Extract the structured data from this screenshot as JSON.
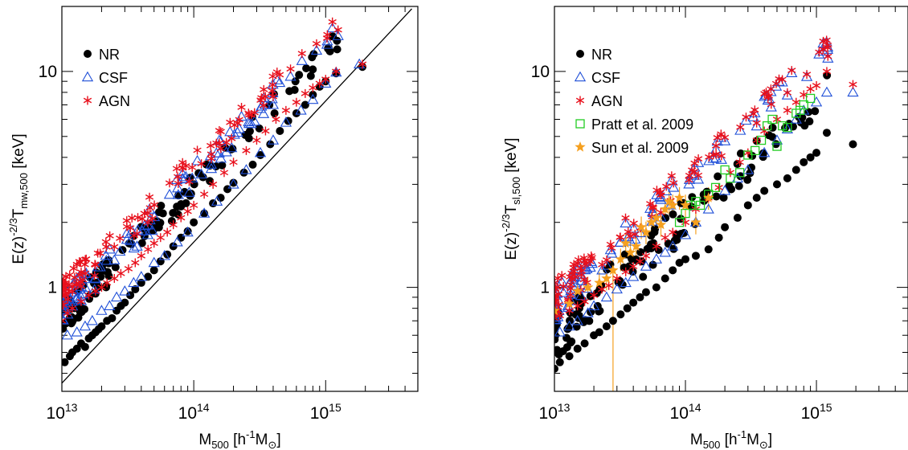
{
  "colors": {
    "nr": "#000000",
    "csf": "#1f4fd8",
    "agn": "#e8101c",
    "pratt": "#22cc22",
    "sun": "#f5a020",
    "fit_line": "#000000"
  },
  "chart_data": [
    {
      "type": "scatter",
      "x_scale": "log",
      "y_scale": "log",
      "xlim": [
        10000000000000.0,
        5000000000000000.0
      ],
      "ylim": [
        0.33,
        20
      ],
      "x_ticks": [
        {
          "value": 10000000000000.0,
          "base": "10",
          "exp": "13"
        },
        {
          "value": 100000000000000.0,
          "base": "10",
          "exp": "14"
        },
        {
          "value": 1000000000000000.0,
          "base": "10",
          "exp": "15"
        }
      ],
      "y_ticks": [
        {
          "value": 1,
          "label": "1"
        },
        {
          "value": 10,
          "label": "10"
        }
      ],
      "xlabel": {
        "main": "M",
        "sub": "500",
        "unit_open": " [h",
        "unit_sup": "-1",
        "unit_close": "M",
        "unit_sub": "⊙",
        "unit_end": "]"
      },
      "ylabel": {
        "main": "E(z)",
        "sup": "-2/3",
        "T": "T",
        "sub": "mw,500",
        "unit": " [keV]"
      },
      "legend": {
        "position": "top-left",
        "entries": [
          {
            "key": "nr",
            "label": "NR",
            "marker": "filled-circle"
          },
          {
            "key": "csf",
            "label": "CSF",
            "marker": "open-triangle"
          },
          {
            "key": "agn",
            "label": "AGN",
            "marker": "asterisk"
          }
        ]
      },
      "fit_line": {
        "x": [
          10000000000000.0,
          4500000000000000.0
        ],
        "y": [
          0.36,
          19.5
        ]
      },
      "trends": {
        "nr": {
          "a": -0.15,
          "b": 0.62,
          "scatter": 0.045
        },
        "csf": {
          "a": -0.1,
          "b": 0.62,
          "scatter": 0.045
        },
        "agn": {
          "a": -0.03,
          "b": 0.6,
          "scatter": 0.045
        }
      },
      "series": [
        {
          "key": "nr",
          "x": [
            10500000000000.0,
            11500000000000.0,
            12000000000000.0,
            13000000000000.0,
            14000000000000.0,
            15000000000000.0,
            16000000000000.0,
            17000000000000.0,
            18000000000000.0,
            19000000000000.0,
            20000000000000.0,
            22000000000000.0,
            24000000000000.0,
            26000000000000.0,
            28000000000000.0,
            30000000000000.0,
            33000000000000.0,
            36000000000000.0,
            40000000000000.0,
            45000000000000.0,
            50000000000000.0,
            56000000000000.0,
            63000000000000.0,
            70000000000000.0,
            80000000000000.0,
            90000000000000.0,
            100000000000000.0,
            120000000000000.0,
            140000000000000.0,
            160000000000000.0,
            180000000000000.0,
            200000000000000.0,
            240000000000000.0,
            280000000000000.0,
            320000000000000.0,
            380000000000000.0,
            450000000000000.0,
            520000000000000.0,
            600000000000000.0,
            700000000000000.0,
            800000000000000.0,
            900000000000000.0,
            1000000000000000.0,
            1200000000000000.0,
            1900000000000000.0
          ],
          "y": [
            0.45,
            0.48,
            0.5,
            0.52,
            0.55,
            0.53,
            0.58,
            0.6,
            0.62,
            0.64,
            0.66,
            0.7,
            0.72,
            0.78,
            0.82,
            0.85,
            0.92,
            0.98,
            1.05,
            1.12,
            1.2,
            1.32,
            1.42,
            1.55,
            1.7,
            1.82,
            2.0,
            2.2,
            2.45,
            2.6,
            2.85,
            3.05,
            3.4,
            3.7,
            4.1,
            4.6,
            5.3,
            5.9,
            6.4,
            7.0,
            7.8,
            8.5,
            9.0,
            9.8,
            10.5
          ]
        },
        {
          "key": "csf",
          "x": [
            11000000000000.0,
            13000000000000.0,
            15000000000000.0,
            17000000000000.0,
            20000000000000.0,
            23000000000000.0,
            26000000000000.0,
            30000000000000.0,
            35000000000000.0,
            40000000000000.0,
            50000000000000.0,
            60000000000000.0,
            75000000000000.0,
            90000000000000.0,
            120000000000000.0,
            150000000000000.0,
            200000000000000.0,
            250000000000000.0,
            320000000000000.0,
            400000000000000.0,
            500000000000000.0,
            650000000000000.0,
            800000000000000.0,
            1000000000000000.0,
            1200000000000000.0,
            1800000000000000.0
          ],
          "y": [
            0.6,
            0.62,
            0.66,
            0.7,
            0.78,
            0.82,
            0.9,
            0.96,
            1.05,
            1.12,
            1.3,
            1.4,
            1.62,
            1.8,
            2.2,
            2.5,
            3.0,
            3.5,
            4.2,
            4.8,
            5.8,
            6.6,
            7.4,
            8.8,
            9.9,
            10.8
          ]
        },
        {
          "key": "agn",
          "x": [
            10000000000000.0,
            11000000000000.0,
            12000000000000.0,
            14000000000000.0,
            16000000000000.0,
            18000000000000.0,
            20000000000000.0,
            22000000000000.0,
            25000000000000.0,
            28000000000000.0,
            32000000000000.0,
            36000000000000.0,
            40000000000000.0,
            45000000000000.0,
            50000000000000.0,
            56000000000000.0,
            63000000000000.0,
            70000000000000.0,
            80000000000000.0,
            90000000000000.0,
            100000000000000.0,
            120000000000000.0,
            140000000000000.0,
            170000000000000.0,
            200000000000000.0,
            250000000000000.0,
            300000000000000.0,
            350000000000000.0,
            420000000000000.0,
            500000000000000.0,
            600000000000000.0,
            700000000000000.0,
            800000000000000.0,
            900000000000000.0,
            1000000000000000.0,
            1200000000000000.0,
            1900000000000000.0
          ],
          "y": [
            0.7,
            0.76,
            0.8,
            0.86,
            0.92,
            0.96,
            1.0,
            1.05,
            1.1,
            1.16,
            1.22,
            1.3,
            1.4,
            1.5,
            1.6,
            1.7,
            1.8,
            1.95,
            2.1,
            2.25,
            2.4,
            2.7,
            3.0,
            3.4,
            3.8,
            4.3,
            4.8,
            5.3,
            6.0,
            6.6,
            7.2,
            7.9,
            8.4,
            8.8,
            9.2,
            10.0,
            10.8
          ]
        }
      ]
    },
    {
      "type": "scatter",
      "x_scale": "log",
      "y_scale": "log",
      "xlim": [
        10000000000000.0,
        5000000000000000.0
      ],
      "ylim": [
        0.33,
        20
      ],
      "x_ticks": [
        {
          "value": 10000000000000.0,
          "base": "10",
          "exp": "13"
        },
        {
          "value": 100000000000000.0,
          "base": "10",
          "exp": "14"
        },
        {
          "value": 1000000000000000.0,
          "base": "10",
          "exp": "15"
        }
      ],
      "y_ticks": [
        {
          "value": 1,
          "label": "1"
        },
        {
          "value": 10,
          "label": "10"
        }
      ],
      "xlabel": {
        "main": "M",
        "sub": "500",
        "unit_open": " [h",
        "unit_sup": "-1",
        "unit_close": "M",
        "unit_sub": "⊙",
        "unit_end": "]"
      },
      "ylabel": {
        "main": "E(z)",
        "sup": "-2/3",
        "T": "T",
        "sub": "sl,500",
        "unit": " [keV]"
      },
      "legend": {
        "position": "top-left",
        "entries": [
          {
            "key": "nr",
            "label": "NR",
            "marker": "filled-circle"
          },
          {
            "key": "csf",
            "label": "CSF",
            "marker": "open-triangle"
          },
          {
            "key": "agn",
            "label": "AGN",
            "marker": "asterisk"
          },
          {
            "key": "pratt",
            "label": "Pratt et al. 2009",
            "marker": "open-square"
          },
          {
            "key": "sun",
            "label": "Sun et al. 2009",
            "marker": "filled-star"
          }
        ]
      },
      "trends": {
        "nr": {
          "a": -0.23,
          "b": 0.55,
          "scatter": 0.07
        },
        "csf": {
          "a": -0.08,
          "b": 0.57,
          "scatter": 0.05
        },
        "agn": {
          "a": -0.05,
          "b": 0.56,
          "scatter": 0.05
        }
      },
      "series": [
        {
          "key": "nr",
          "x": [
            10000000000000.0,
            11000000000000.0,
            13000000000000.0,
            15000000000000.0,
            17000000000000.0,
            20000000000000.0,
            22000000000000.0,
            25000000000000.0,
            28000000000000.0,
            32000000000000.0,
            36000000000000.0,
            40000000000000.0,
            45000000000000.0,
            50000000000000.0,
            60000000000000.0,
            70000000000000.0,
            80000000000000.0,
            90000000000000.0,
            100000000000000.0,
            120000000000000.0,
            150000000000000.0,
            180000000000000.0,
            200000000000000.0,
            250000000000000.0,
            300000000000000.0,
            350000000000000.0,
            400000000000000.0,
            500000000000000.0,
            600000000000000.0,
            700000000000000.0,
            800000000000000.0,
            900000000000000.0,
            1000000000000000.0,
            1200000000000000.0,
            1900000000000000.0
          ],
          "y": [
            0.42,
            0.45,
            0.48,
            0.52,
            0.55,
            0.6,
            0.62,
            0.66,
            0.7,
            0.75,
            0.8,
            0.85,
            0.9,
            0.95,
            1.0,
            1.1,
            1.2,
            1.3,
            1.35,
            1.4,
            1.5,
            1.7,
            1.9,
            2.1,
            2.4,
            2.6,
            2.8,
            3.0,
            3.2,
            3.5,
            3.8,
            4.0,
            4.2,
            5.2,
            4.6
          ]
        },
        {
          "key": "csf",
          "x": [
            11000000000000.0,
            13000000000000.0,
            15000000000000.0,
            18000000000000.0,
            20000000000000.0,
            25000000000000.0,
            30000000000000.0,
            35000000000000.0,
            40000000000000.0,
            50000000000000.0,
            60000000000000.0,
            70000000000000.0,
            80000000000000.0,
            100000000000000.0,
            120000000000000.0,
            150000000000000.0,
            200000000000000.0,
            250000000000000.0,
            300000000000000.0,
            400000000000000.0,
            500000000000000.0,
            600000000000000.0,
            700000000000000.0,
            800000000000000.0,
            1000000000000000.0,
            1200000000000000.0,
            1900000000000000.0
          ],
          "y": [
            0.62,
            0.66,
            0.7,
            0.76,
            0.82,
            0.9,
            0.98,
            1.05,
            1.12,
            1.25,
            1.35,
            1.45,
            1.55,
            1.75,
            2.0,
            2.3,
            2.8,
            3.2,
            3.5,
            4.2,
            4.8,
            5.4,
            6.0,
            6.6,
            7.2,
            8.0,
            8.0
          ]
        },
        {
          "key": "agn",
          "x": [
            10000000000000.0,
            11000000000000.0,
            13000000000000.0,
            15000000000000.0,
            17000000000000.0,
            20000000000000.0,
            23000000000000.0,
            26000000000000.0,
            30000000000000.0,
            35000000000000.0,
            40000000000000.0,
            45000000000000.0,
            50000000000000.0,
            60000000000000.0,
            70000000000000.0,
            80000000000000.0,
            100000000000000.0,
            120000000000000.0,
            150000000000000.0,
            180000000000000.0,
            220000000000000.0,
            260000000000000.0,
            300000000000000.0,
            350000000000000.0,
            400000000000000.0,
            500000000000000.0,
            600000000000000.0,
            700000000000000.0,
            800000000000000.0,
            900000000000000.0,
            1000000000000000.0,
            1200000000000000.0,
            1900000000000000.0
          ],
          "y": [
            0.72,
            0.74,
            0.78,
            0.82,
            0.86,
            0.92,
            0.98,
            1.02,
            1.1,
            1.18,
            1.25,
            1.32,
            1.4,
            1.55,
            1.7,
            1.8,
            2.0,
            2.3,
            2.6,
            2.9,
            3.4,
            3.8,
            4.2,
            4.8,
            5.3,
            6.0,
            6.6,
            7.2,
            7.8,
            8.3,
            8.6,
            10.0,
            8.7
          ]
        },
        {
          "key": "pratt",
          "x": [
            90000000000000.0,
            100000000000000.0,
            110000000000000.0,
            120000000000000.0,
            130000000000000.0,
            150000000000000.0,
            170000000000000.0,
            200000000000000.0,
            220000000000000.0,
            260000000000000.0,
            300000000000000.0,
            340000000000000.0,
            380000000000000.0,
            420000000000000.0,
            460000000000000.0,
            500000000000000.0,
            550000000000000.0,
            600000000000000.0,
            700000000000000.0,
            750000000000000.0,
            800000000000000.0,
            900000000000000.0
          ],
          "y": [
            2.0,
            2.2,
            2.4,
            2.5,
            2.4,
            2.7,
            2.9,
            3.5,
            3.2,
            3.4,
            4.1,
            4.3,
            4.8,
            5.6,
            6.0,
            4.5,
            5.6,
            5.5,
            6.4,
            6.6,
            7.0,
            7.5
          ]
        },
        {
          "key": "sun",
          "x": [
            10000000000000.0,
            13000000000000.0,
            15000000000000.0,
            18000000000000.0,
            22000000000000.0,
            25000000000000.0,
            28000000000000.0,
            32000000000000.0,
            35000000000000.0,
            38000000000000.0,
            42000000000000.0,
            46000000000000.0,
            50000000000000.0,
            55000000000000.0,
            60000000000000.0,
            65000000000000.0,
            70000000000000.0,
            75000000000000.0,
            80000000000000.0,
            90000000000000.0,
            100000000000000.0,
            120000000000000.0,
            150000000000000.0
          ],
          "y": [
            0.78,
            0.84,
            0.96,
            1.0,
            1.05,
            1.1,
            1.2,
            1.35,
            1.6,
            1.45,
            1.55,
            1.9,
            1.8,
            2.0,
            2.1,
            1.95,
            2.3,
            2.5,
            2.4,
            2.6,
            2.4,
            2.0,
            2.6
          ]
        }
      ]
    }
  ]
}
